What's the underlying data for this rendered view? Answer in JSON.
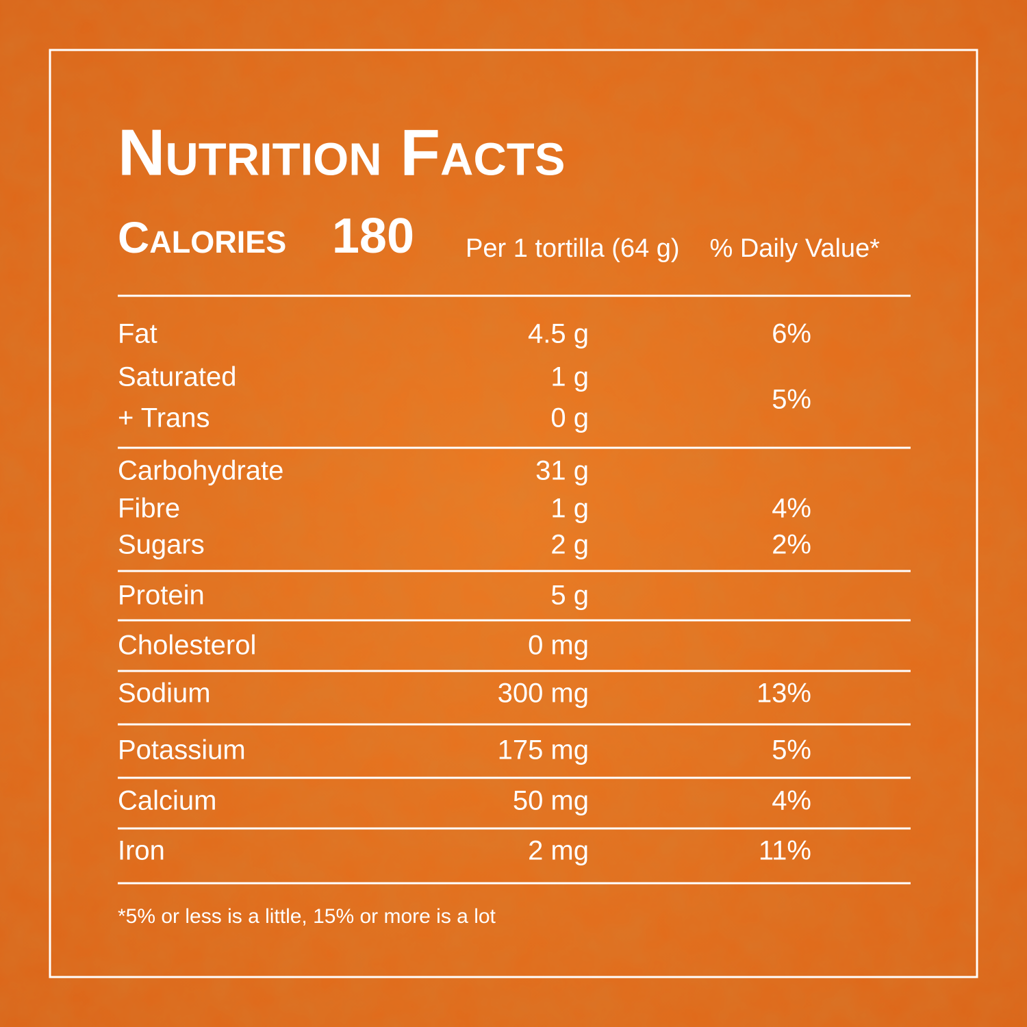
{
  "header": {
    "title": "Nutrition Facts",
    "calories_label": "Calories",
    "calories_value": "180",
    "serving": "Per 1 tortilla (64 g)",
    "daily_value_heading": "% Daily Value*"
  },
  "table": {
    "rows": [
      {
        "nutrient": [
          "Fat"
        ],
        "amount": [
          "4.5 g"
        ],
        "daily_value": "6%"
      },
      {
        "nutrient": [
          "Saturated",
          "+ Trans"
        ],
        "amount": [
          "1 g",
          "0 g"
        ],
        "daily_value": "5%"
      },
      {
        "nutrient": [
          "Carbohydrate"
        ],
        "amount": [
          "31 g"
        ]
      },
      {
        "nutrient": [
          "Fibre"
        ],
        "amount": [
          "1 g"
        ],
        "daily_value": "4%"
      },
      {
        "nutrient": [
          "Sugars"
        ],
        "amount": [
          "2 g"
        ],
        "daily_value": "2%"
      },
      {
        "nutrient": [
          "Protein"
        ],
        "amount": [
          "5 g"
        ]
      },
      {
        "nutrient": [
          "Cholesterol"
        ],
        "amount": [
          "0 mg"
        ]
      },
      {
        "nutrient": [
          "Sodium"
        ],
        "amount": [
          "300 mg"
        ],
        "daily_value": "13%"
      },
      {
        "nutrient": [
          "Potassium"
        ],
        "amount": [
          "175 mg"
        ],
        "daily_value": "5%"
      },
      {
        "nutrient": [
          "Calcium"
        ],
        "amount": [
          "50 mg"
        ],
        "daily_value": "4%"
      },
      {
        "nutrient": [
          "Iron"
        ],
        "amount": [
          "2 mg"
        ],
        "daily_value": "11%"
      }
    ]
  },
  "footnote": "*5% or less is a little, 15% or more is a lot"
}
